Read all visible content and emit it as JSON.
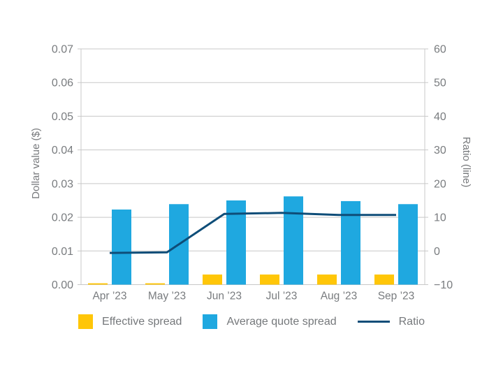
{
  "chart_data": {
    "type": "bar+line",
    "categories": [
      "Apr ’23",
      "May ’23",
      "Jun ’23",
      "Jul ’23",
      "Aug ’23",
      "Sep ’23"
    ],
    "series": [
      {
        "name": "Effective spread",
        "type": "bar",
        "axis": "left",
        "color": "#ffc608",
        "values": [
          0.0004,
          0.0004,
          0.003,
          0.003,
          0.003,
          0.003
        ]
      },
      {
        "name": "Average quote spread",
        "type": "bar",
        "axis": "left",
        "color": "#1fa8e0",
        "values": [
          0.0223,
          0.0239,
          0.025,
          0.0262,
          0.0248,
          0.0239
        ]
      },
      {
        "name": "Ratio",
        "type": "line",
        "axis": "right",
        "color": "#0e4d78",
        "values": [
          -0.6,
          -0.4,
          11.0,
          11.3,
          10.7,
          10.7
        ]
      }
    ],
    "left_axis": {
      "label": "Dollar value ($)",
      "min": 0,
      "max": 0.07,
      "tick_labels": [
        "0.00",
        "0.01",
        "0.02",
        "0.03",
        "0.04",
        "0.05",
        "0.06",
        "0.07"
      ]
    },
    "right_axis": {
      "label": "Ratio (line)",
      "min": -10,
      "max": 60,
      "tick_labels": [
        "−10",
        "0",
        "10",
        "20",
        "30",
        "40",
        "50",
        "60"
      ]
    },
    "grid": "horizontal",
    "legend_position": "bottom",
    "colors": {
      "grid": "#c8c8c8",
      "tick_text": "#797c7f",
      "background": "#ffffff"
    }
  },
  "legend": {
    "items": [
      {
        "label": "Effective spread",
        "swatch": "square"
      },
      {
        "label": "Average quote spread",
        "swatch": "square"
      },
      {
        "label": "Ratio",
        "swatch": "line"
      }
    ]
  }
}
